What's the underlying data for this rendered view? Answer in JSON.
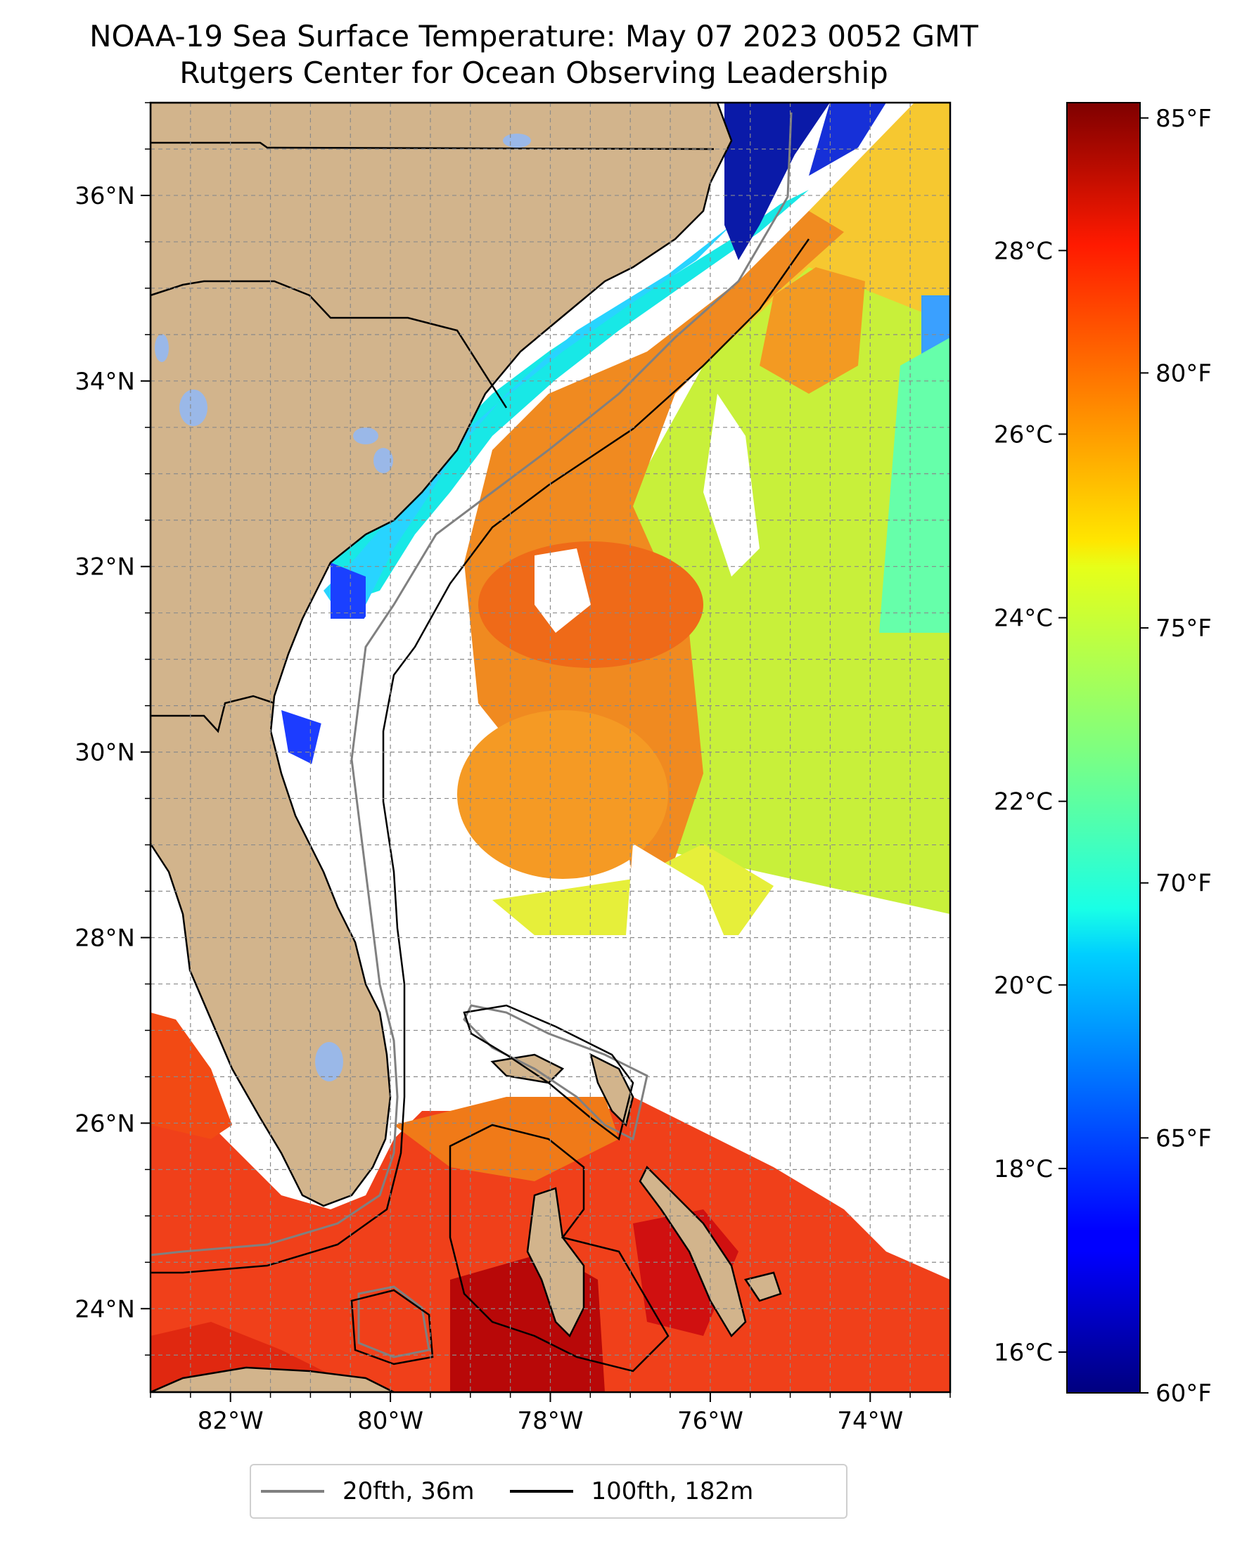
{
  "title": {
    "line1": "NOAA-19 Sea Surface Temperature: May 07 2023 0052 GMT",
    "line2": "Rutgers Center for Ocean Observing Leadership"
  },
  "map": {
    "lon_range": [
      -83,
      -73
    ],
    "lat_range": [
      23.1,
      37
    ],
    "lon_ticks": [
      "82°W",
      "80°W",
      "78°W",
      "76°W",
      "74°W"
    ],
    "lat_ticks": [
      "24°N",
      "26°N",
      "28°N",
      "30°N",
      "32°N",
      "34°N",
      "36°N"
    ],
    "land_color": "#d2b48c",
    "lake_color": "#9ab8e8",
    "no_data_color": "#ffffff",
    "colormap": "jet",
    "grid": true
  },
  "colorbar": {
    "fahrenheit_ticks": [
      "85°F",
      "80°F",
      "75°F",
      "70°F",
      "65°F",
      "60°F"
    ],
    "celsius_ticks": [
      "28°C",
      "26°C",
      "24°C",
      "22°C",
      "20°C",
      "18°C",
      "16°C"
    ],
    "range_f": [
      60,
      85.3
    ]
  },
  "legend": [
    {
      "label": "20fth, 36m",
      "color": "#808080"
    },
    {
      "label": "100fth, 182m",
      "color": "#000000"
    }
  ]
}
